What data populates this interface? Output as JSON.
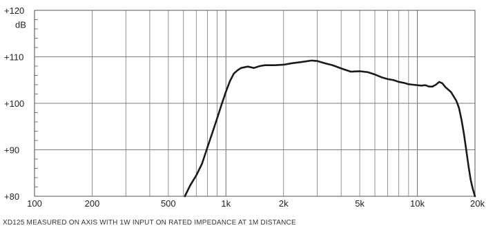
{
  "chart_data": {
    "type": "line",
    "title": "",
    "xlabel": "",
    "ylabel": "dB",
    "x_scale": "log",
    "xlim": [
      100,
      20000
    ],
    "ylim": [
      80,
      120
    ],
    "grid": true,
    "legend": "none",
    "colors": {
      "line": "#1a1a1a",
      "grid": "#7a7a7a",
      "axis": "#555555"
    },
    "x_ticks": [
      {
        "value": 100,
        "label": "100"
      },
      {
        "value": 200,
        "label": "200"
      },
      {
        "value": 500,
        "label": "500"
      },
      {
        "value": 1000,
        "label": "1k"
      },
      {
        "value": 2000,
        "label": "2k"
      },
      {
        "value": 5000,
        "label": "5k"
      },
      {
        "value": 10000,
        "label": "10k"
      },
      {
        "value": 20000,
        "label": "20k"
      }
    ],
    "y_ticks": [
      {
        "value": 120,
        "label": "+120"
      },
      {
        "value": 110,
        "label": "+110"
      },
      {
        "value": 100,
        "label": "+100"
      },
      {
        "value": 90,
        "label": "+90"
      },
      {
        "value": 80,
        "label": "+80"
      }
    ],
    "y_unit_label": "dB",
    "series": [
      {
        "x": [
          610,
          650,
          700,
          750,
          800,
          850,
          900,
          950,
          1000,
          1050,
          1100,
          1150,
          1200,
          1300,
          1400,
          1500,
          1600,
          1800,
          2000,
          2200,
          2500,
          2800,
          3000,
          3300,
          3600,
          4000,
          4500,
          5000,
          5500,
          6000,
          6500,
          7000,
          7500,
          8000,
          8500,
          9000,
          9500,
          10000,
          10500,
          11000,
          11500,
          12000,
          12500,
          13000,
          13500,
          14000,
          15000,
          16000,
          16500,
          17000,
          17500,
          18000,
          18500,
          19000,
          19500,
          20000
        ],
        "y": [
          80.0,
          82.3,
          84.5,
          87.0,
          90.5,
          93.7,
          96.8,
          99.8,
          102.5,
          104.8,
          106.4,
          107.1,
          107.6,
          107.9,
          107.6,
          108.0,
          108.2,
          108.2,
          108.3,
          108.6,
          108.9,
          109.2,
          109.1,
          108.6,
          108.2,
          107.5,
          106.8,
          106.9,
          106.7,
          106.2,
          105.6,
          105.2,
          105.0,
          104.6,
          104.4,
          104.1,
          104.0,
          103.9,
          103.8,
          103.9,
          103.6,
          103.6,
          104.0,
          104.6,
          104.3,
          103.5,
          102.4,
          100.5,
          99.0,
          96.5,
          93.5,
          90.0,
          86.5,
          83.5,
          81.5,
          80.0
        ]
      }
    ]
  },
  "caption": "XD125 MEASURED ON AXIS WITH 1W INPUT ON RATED IMPEDANCE AT 1M DISTANCE"
}
